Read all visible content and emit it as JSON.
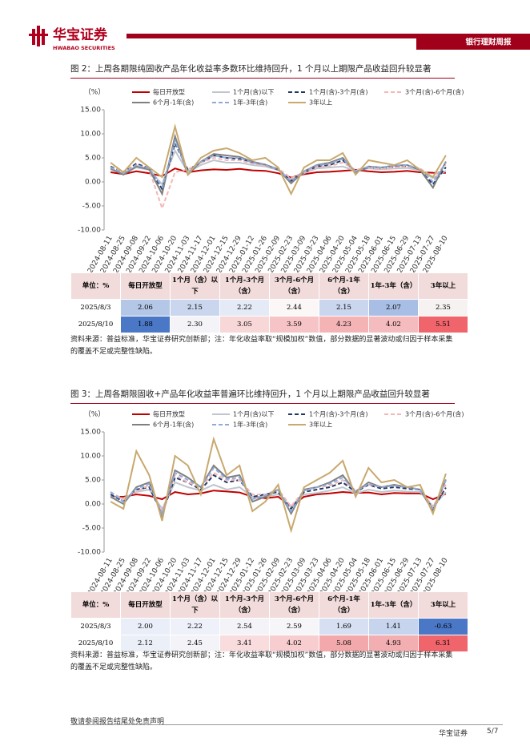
{
  "header": {
    "brand": "华宝证券",
    "brand_en": "HWABAO SECURITIES",
    "report": "银行理财周报"
  },
  "chart_data": [
    {
      "type": "line",
      "title": "图 2：上周各期限纯固收产品年化收益率多数环比维持回升，1 个月以上期限产品收益回升较显著",
      "y_label": "（%）",
      "categories": [
        "2024-08-11",
        "2024-08-25",
        "2024-09-08",
        "2024-09-22",
        "2024-10-06",
        "2024-10-20",
        "2024-11-03",
        "2024-11-17",
        "2024-12-01",
        "2024-12-15",
        "2024-12-29",
        "2025-01-12",
        "2025-01-26",
        "2025-02-09",
        "2025-02-23",
        "2025-03-09",
        "2025-03-23",
        "2025-04-06",
        "2025-04-20",
        "2025-05-04",
        "2025-05-18",
        "2025-06-01",
        "2025-06-15",
        "2025-06-29",
        "2025-07-13",
        "2025-07-27",
        "2025-08-10"
      ],
      "ylim": [
        -10,
        15
      ],
      "yticks": [
        {
          "value": -10,
          "label": "-10.00"
        },
        {
          "value": -5,
          "label": "-5.00"
        },
        {
          "value": 0,
          "label": "0.00"
        },
        {
          "value": 5,
          "label": "5.00"
        },
        {
          "value": 10,
          "label": "10.00"
        },
        {
          "value": 15,
          "label": "15.00"
        }
      ],
      "grid": false,
      "series": [
        {
          "name": "每日开放型",
          "color": "#c00000",
          "dash": false,
          "values": [
            2.0,
            1.6,
            2.2,
            1.8,
            1.2,
            2.8,
            2.0,
            2.4,
            2.6,
            2.5,
            2.7,
            2.4,
            2.3,
            1.8,
            0.9,
            1.6,
            2.0,
            2.1,
            2.3,
            2.5,
            2.2,
            2.0,
            2.1,
            2.3,
            2.0,
            1.9,
            1.88
          ]
        },
        {
          "name": "1个月(含)以下",
          "color": "#bfc5cf",
          "dash": false,
          "values": [
            2.5,
            1.8,
            3.0,
            2.5,
            -0.5,
            6.5,
            2.0,
            3.5,
            4.5,
            4.0,
            4.0,
            3.5,
            3.2,
            2.5,
            0.5,
            1.8,
            2.8,
            3.0,
            3.2,
            2.3,
            2.8,
            2.6,
            2.8,
            2.9,
            2.4,
            0.8,
            2.3
          ]
        },
        {
          "name": "1个月(含)-3个月(含)",
          "color": "#1f3864",
          "dash": true,
          "values": [
            3.2,
            2.0,
            3.8,
            2.8,
            -1.5,
            8.0,
            2.5,
            4.0,
            5.5,
            5.0,
            4.8,
            4.0,
            3.5,
            2.5,
            0.2,
            2.0,
            3.2,
            3.5,
            4.5,
            2.2,
            3.0,
            2.8,
            3.2,
            3.3,
            2.6,
            -0.5,
            3.05
          ]
        },
        {
          "name": "3个月(含)-6个月(含)",
          "color": "#f4b6b6",
          "dash": true,
          "values": [
            3.0,
            2.2,
            3.5,
            2.5,
            -5.5,
            2.0,
            2.6,
            4.0,
            5.0,
            4.5,
            4.5,
            3.8,
            3.3,
            2.8,
            0.8,
            2.0,
            3.0,
            3.3,
            4.0,
            2.5,
            3.0,
            2.7,
            3.0,
            3.2,
            2.8,
            1.0,
            3.59
          ]
        },
        {
          "name": "6个月-1年(含)",
          "color": "#7f7f7f",
          "dash": false,
          "values": [
            2.8,
            1.5,
            3.2,
            2.6,
            -2.5,
            9.5,
            1.5,
            4.2,
            5.8,
            5.5,
            5.2,
            4.2,
            3.6,
            2.6,
            -0.3,
            2.2,
            3.5,
            4.0,
            5.0,
            2.0,
            3.2,
            3.0,
            3.4,
            3.5,
            2.5,
            -1.2,
            4.23
          ]
        },
        {
          "name": "1年-3年(含)",
          "color": "#8eaadb",
          "dash": true,
          "values": [
            3.0,
            1.8,
            3.5,
            2.8,
            -1.0,
            8.5,
            2.0,
            4.2,
            5.5,
            5.0,
            5.0,
            4.0,
            3.5,
            2.5,
            0.2,
            2.2,
            3.4,
            3.8,
            4.8,
            2.2,
            3.2,
            3.0,
            3.4,
            3.5,
            2.7,
            0.0,
            4.02
          ]
        },
        {
          "name": "3年以上",
          "color": "#c8a96e",
          "dash": false,
          "values": [
            4.0,
            2.0,
            5.0,
            3.0,
            1.0,
            11.5,
            1.5,
            5.0,
            6.5,
            7.0,
            6.0,
            4.5,
            5.0,
            3.0,
            -2.5,
            3.0,
            4.5,
            4.5,
            6.0,
            1.5,
            4.5,
            4.0,
            3.5,
            4.5,
            2.5,
            1.0,
            5.51
          ]
        }
      ]
    },
    {
      "type": "line",
      "title": "图 3：上周各期限固收+产品年化收益率普遍环比维持回升，1 个月以上期限产品收益回升较显著",
      "y_label": "（%）",
      "categories": [
        "2024-08-11",
        "2024-08-25",
        "2024-09-08",
        "2024-09-22",
        "2024-10-06",
        "2024-10-20",
        "2024-11-03",
        "2024-11-17",
        "2024-12-01",
        "2024-12-15",
        "2024-12-29",
        "2025-01-12",
        "2025-01-26",
        "2025-02-09",
        "2025-02-23",
        "2025-03-09",
        "2025-03-23",
        "2025-04-06",
        "2025-04-20",
        "2025-05-04",
        "2025-05-18",
        "2025-06-01",
        "2025-06-15",
        "2025-06-29",
        "2025-07-13",
        "2025-07-27",
        "2025-08-10"
      ],
      "ylim": [
        -10,
        15
      ],
      "yticks": [
        {
          "value": -10,
          "label": "-10.00"
        },
        {
          "value": -5,
          "label": "-5.00"
        },
        {
          "value": 0,
          "label": "0.00"
        },
        {
          "value": 5,
          "label": "5.00"
        },
        {
          "value": 10,
          "label": "10.00"
        },
        {
          "value": 15,
          "label": "15.00"
        }
      ],
      "grid": false,
      "series": [
        {
          "name": "每日开放型",
          "color": "#c00000",
          "dash": false,
          "values": [
            1.5,
            1.5,
            2.0,
            1.7,
            1.0,
            2.5,
            2.0,
            2.2,
            2.8,
            2.6,
            2.4,
            1.5,
            1.2,
            1.5,
            -0.5,
            1.5,
            2.0,
            2.2,
            2.5,
            2.3,
            2.4,
            2.0,
            2.3,
            2.2,
            2.2,
            1.0,
            2.12
          ]
        },
        {
          "name": "1个月(含)以下",
          "color": "#bfc5cf",
          "dash": false,
          "values": [
            1.5,
            1.2,
            2.5,
            3.0,
            -1.0,
            4.5,
            3.5,
            2.8,
            4.0,
            3.0,
            3.5,
            1.5,
            1.5,
            2.0,
            -0.5,
            2.0,
            2.3,
            2.8,
            3.5,
            2.2,
            3.0,
            2.5,
            2.8,
            2.6,
            2.5,
            -0.5,
            2.45
          ]
        },
        {
          "name": "1个月(含)-3个月(含)",
          "color": "#1f3864",
          "dash": true,
          "values": [
            2.0,
            0.5,
            3.0,
            3.5,
            -2.0,
            5.5,
            4.5,
            3.0,
            6.0,
            4.5,
            5.0,
            1.5,
            2.0,
            2.5,
            -1.0,
            2.5,
            3.0,
            3.5,
            4.5,
            2.5,
            4.0,
            3.2,
            3.5,
            3.2,
            3.0,
            -1.0,
            3.41
          ]
        },
        {
          "name": "3个月(含)-6个月(含)",
          "color": "#f4b6b6",
          "dash": true,
          "values": [
            2.5,
            1.0,
            2.5,
            4.0,
            -1.5,
            6.0,
            4.5,
            3.5,
            6.5,
            5.0,
            5.0,
            2.0,
            2.0,
            3.0,
            -0.5,
            2.8,
            3.5,
            3.8,
            5.0,
            2.8,
            4.0,
            3.5,
            3.8,
            3.5,
            3.0,
            -0.5,
            4.02
          ]
        },
        {
          "name": "6个月-1年(含)",
          "color": "#7f7f7f",
          "dash": false,
          "values": [
            1.5,
            0.0,
            3.5,
            4.5,
            -2.5,
            7.0,
            5.5,
            3.5,
            8.0,
            5.5,
            6.0,
            0.5,
            1.5,
            3.0,
            -2.0,
            3.0,
            3.5,
            4.5,
            6.0,
            2.5,
            4.5,
            3.5,
            4.0,
            3.5,
            3.0,
            -1.5,
            5.08
          ]
        },
        {
          "name": "1年-3年(含)",
          "color": "#8eaadb",
          "dash": true,
          "values": [
            2.5,
            0.5,
            3.2,
            4.2,
            -2.0,
            6.5,
            5.0,
            3.5,
            7.5,
            5.2,
            5.5,
            1.0,
            1.8,
            3.0,
            -1.5,
            2.8,
            3.5,
            4.2,
            5.5,
            2.6,
            4.2,
            3.5,
            3.8,
            3.5,
            3.0,
            -1.0,
            4.93
          ]
        },
        {
          "name": "3年以上",
          "color": "#c8a96e",
          "dash": false,
          "values": [
            0.5,
            -1.0,
            11.0,
            6.0,
            -3.5,
            10.0,
            8.0,
            2.0,
            13.5,
            6.0,
            8.0,
            -1.5,
            0.5,
            4.0,
            -5.5,
            3.5,
            5.0,
            6.5,
            9.0,
            1.5,
            7.5,
            4.5,
            5.0,
            3.5,
            4.0,
            -2.0,
            6.31
          ]
        }
      ]
    }
  ],
  "tables": [
    {
      "header": [
        "单位：%",
        "每日开放型",
        "1个月（含）以下",
        "1个月-3个月（含）",
        "3个月-6个月（含）",
        "6个月-1年（含）",
        "1年-3年（含）",
        "3年以上"
      ],
      "rows": [
        [
          "2025/8/3",
          "2.06",
          "2.15",
          "2.22",
          "2.44",
          "2.15",
          "2.07",
          "2.35"
        ],
        [
          "2025/8/10",
          "1.88",
          "2.30",
          "3.05",
          "3.59",
          "4.23",
          "4.02",
          "5.51"
        ]
      ],
      "cell_colors": [
        [
          "#ffffff",
          "#b4c7e7",
          "#c9d6ee",
          "#e4eaf6",
          "#fbf7f7",
          "#c9d6ee",
          "#a9bee4",
          "#f7f2f2"
        ],
        [
          "#ffffff",
          "#4a77c6",
          "#f4f4f8",
          "#f8d7d8",
          "#f6c4c6",
          "#f4b3b5",
          "#f5bcbf",
          "#f0646b"
        ]
      ]
    },
    {
      "header": [
        "单位：%",
        "每日开放型",
        "1个月（含）以下",
        "1个月-3个月（含）",
        "3个月-6个月（含）",
        "6个月-1年（含）",
        "1年-3年（含）",
        "3年以上"
      ],
      "rows": [
        [
          "2025/8/3",
          "2.00",
          "2.22",
          "2.54",
          "2.59",
          "1.69",
          "1.41",
          "-0.63"
        ],
        [
          "2025/8/10",
          "2.12",
          "2.45",
          "3.41",
          "4.02",
          "5.08",
          "4.93",
          "6.31"
        ]
      ],
      "cell_colors": [
        [
          "#ffffff",
          "#e9eef8",
          "#eef1f9",
          "#f4f4f8",
          "#f6f5f8",
          "#d6e0f2",
          "#c7d4ee",
          "#4a77c6"
        ],
        [
          "#ffffff",
          "#ebeff8",
          "#f3f3f8",
          "#f9dcdd",
          "#f7cdcf",
          "#f3a9ac",
          "#f3aeb1",
          "#f0646b"
        ]
      ]
    }
  ],
  "sources": [
    "资料来源：普益标准，华宝证券研究创新部；注：年化收益率取“规模加权”数值，部分数据的显著波动或归因于样本采集的覆盖不足或完整性缺陷。",
    "资料来源：普益标准，华宝证券研究创新部；注：年化收益率取“规模加权”数值，部分数据的显著波动或归因于样本采集的覆盖不足或完整性缺陷。"
  ],
  "footer": {
    "disclaimer": "敬请参阅报告结尾处免责声明",
    "brand": "华宝证券",
    "page": "5/7"
  }
}
